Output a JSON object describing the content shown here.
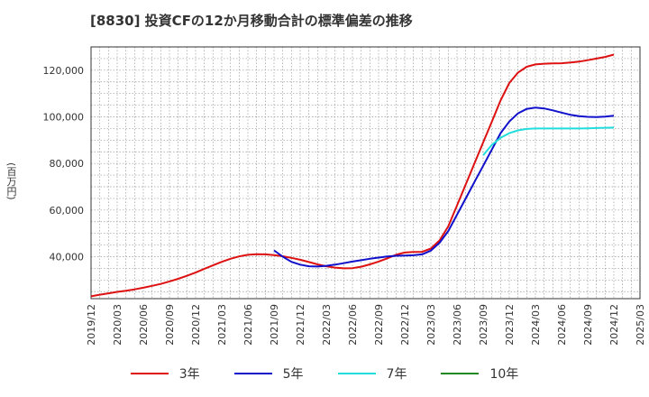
{
  "chart_data": {
    "type": "line",
    "title": "[8830]  投資CFの12か月移動合計の標準偏差の推移",
    "ylabel": "(百万円)",
    "xlabel": "",
    "x_ticks": [
      "2019/12",
      "2020/03",
      "2020/06",
      "2020/09",
      "2020/12",
      "2021/03",
      "2021/06",
      "2021/09",
      "2021/12",
      "2022/03",
      "2022/06",
      "2022/09",
      "2022/12",
      "2023/03",
      "2023/06",
      "2023/09",
      "2023/12",
      "2024/03",
      "2024/06",
      "2024/09",
      "2024/12",
      "2025/03"
    ],
    "y_ticks": [
      40000,
      60000,
      80000,
      100000,
      120000
    ],
    "y_tick_labels": [
      "40,000",
      "60,000",
      "80,000",
      "100,000",
      "120,000"
    ],
    "ylim": [
      22000,
      130000
    ],
    "grid": true,
    "legend_position": "bottom",
    "series": [
      {
        "name": "3年",
        "color": "#dd1111",
        "values": [
          [
            "2019/12",
            23000
          ],
          [
            "2020/01",
            23700
          ],
          [
            "2020/02",
            24300
          ],
          [
            "2020/03",
            24900
          ],
          [
            "2020/04",
            25400
          ],
          [
            "2020/05",
            26000
          ],
          [
            "2020/06",
            26700
          ],
          [
            "2020/07",
            27500
          ],
          [
            "2020/08",
            28300
          ],
          [
            "2020/09",
            29400
          ],
          [
            "2020/10",
            30500
          ],
          [
            "2020/11",
            31800
          ],
          [
            "2020/12",
            33200
          ],
          [
            "2021/01",
            34800
          ],
          [
            "2021/02",
            36300
          ],
          [
            "2021/03",
            37800
          ],
          [
            "2021/04",
            39100
          ],
          [
            "2021/05",
            40100
          ],
          [
            "2021/06",
            40800
          ],
          [
            "2021/07",
            41100
          ],
          [
            "2021/08",
            41000
          ],
          [
            "2021/09",
            40700
          ],
          [
            "2021/10",
            40200
          ],
          [
            "2021/11",
            39500
          ],
          [
            "2021/12",
            38700
          ],
          [
            "2022/01",
            37700
          ],
          [
            "2022/02",
            36700
          ],
          [
            "2022/03",
            35900
          ],
          [
            "2022/04",
            35300
          ],
          [
            "2022/05",
            35000
          ],
          [
            "2022/06",
            35100
          ],
          [
            "2022/07",
            35700
          ],
          [
            "2022/08",
            36700
          ],
          [
            "2022/09",
            37900
          ],
          [
            "2022/10",
            39300
          ],
          [
            "2022/11",
            40800
          ],
          [
            "2022/12",
            41800
          ],
          [
            "2023/01",
            42000
          ],
          [
            "2023/02",
            42100
          ],
          [
            "2023/03",
            43500
          ],
          [
            "2023/04",
            47000
          ],
          [
            "2023/05",
            53000
          ],
          [
            "2023/06",
            62000
          ],
          [
            "2023/07",
            71000
          ],
          [
            "2023/08",
            80000
          ],
          [
            "2023/09",
            89000
          ],
          [
            "2023/10",
            98000
          ],
          [
            "2023/11",
            107000
          ],
          [
            "2023/12",
            114500
          ],
          [
            "2024/01",
            119000
          ],
          [
            "2024/02",
            121500
          ],
          [
            "2024/03",
            122500
          ],
          [
            "2024/04",
            122800
          ],
          [
            "2024/05",
            122900
          ],
          [
            "2024/06",
            123000
          ],
          [
            "2024/07",
            123300
          ],
          [
            "2024/08",
            123700
          ],
          [
            "2024/09",
            124300
          ],
          [
            "2024/10",
            125000
          ],
          [
            "2024/11",
            125700
          ],
          [
            "2024/12",
            126700
          ]
        ]
      },
      {
        "name": "5年",
        "color": "#1111cc",
        "values": [
          [
            "2021/09",
            42700
          ],
          [
            "2021/10",
            40000
          ],
          [
            "2021/11",
            37800
          ],
          [
            "2021/12",
            36600
          ],
          [
            "2022/01",
            35900
          ],
          [
            "2022/02",
            35800
          ],
          [
            "2022/03",
            36100
          ],
          [
            "2022/04",
            36600
          ],
          [
            "2022/05",
            37200
          ],
          [
            "2022/06",
            37900
          ],
          [
            "2022/07",
            38500
          ],
          [
            "2022/08",
            39100
          ],
          [
            "2022/09",
            39600
          ],
          [
            "2022/10",
            40100
          ],
          [
            "2022/11",
            40400
          ],
          [
            "2022/12",
            40500
          ],
          [
            "2023/01",
            40600
          ],
          [
            "2023/02",
            41000
          ],
          [
            "2023/03",
            42600
          ],
          [
            "2023/04",
            46000
          ],
          [
            "2023/05",
            51000
          ],
          [
            "2023/06",
            58000
          ],
          [
            "2023/07",
            65000
          ],
          [
            "2023/08",
            72000
          ],
          [
            "2023/09",
            79000
          ],
          [
            "2023/10",
            86000
          ],
          [
            "2023/11",
            93000
          ],
          [
            "2023/12",
            98000
          ],
          [
            "2024/01",
            101500
          ],
          [
            "2024/02",
            103400
          ],
          [
            "2024/03",
            104000
          ],
          [
            "2024/04",
            103600
          ],
          [
            "2024/05",
            102800
          ],
          [
            "2024/06",
            101800
          ],
          [
            "2024/07",
            100900
          ],
          [
            "2024/08",
            100300
          ],
          [
            "2024/09",
            100000
          ],
          [
            "2024/10",
            99900
          ],
          [
            "2024/11",
            100100
          ],
          [
            "2024/12",
            100500
          ]
        ]
      },
      {
        "name": "7年",
        "color": "#22dddd",
        "values": [
          [
            "2023/09",
            83500
          ],
          [
            "2023/10",
            88000
          ],
          [
            "2023/11",
            91000
          ],
          [
            "2023/12",
            93000
          ],
          [
            "2024/01",
            94200
          ],
          [
            "2024/02",
            94800
          ],
          [
            "2024/03",
            95000
          ],
          [
            "2024/04",
            95000
          ],
          [
            "2024/05",
            95000
          ],
          [
            "2024/06",
            95000
          ],
          [
            "2024/07",
            95000
          ],
          [
            "2024/08",
            95000
          ],
          [
            "2024/09",
            95100
          ],
          [
            "2024/10",
            95200
          ],
          [
            "2024/11",
            95300
          ],
          [
            "2024/12",
            95400
          ]
        ]
      },
      {
        "name": "10年",
        "color": "#228822",
        "values": []
      }
    ]
  }
}
